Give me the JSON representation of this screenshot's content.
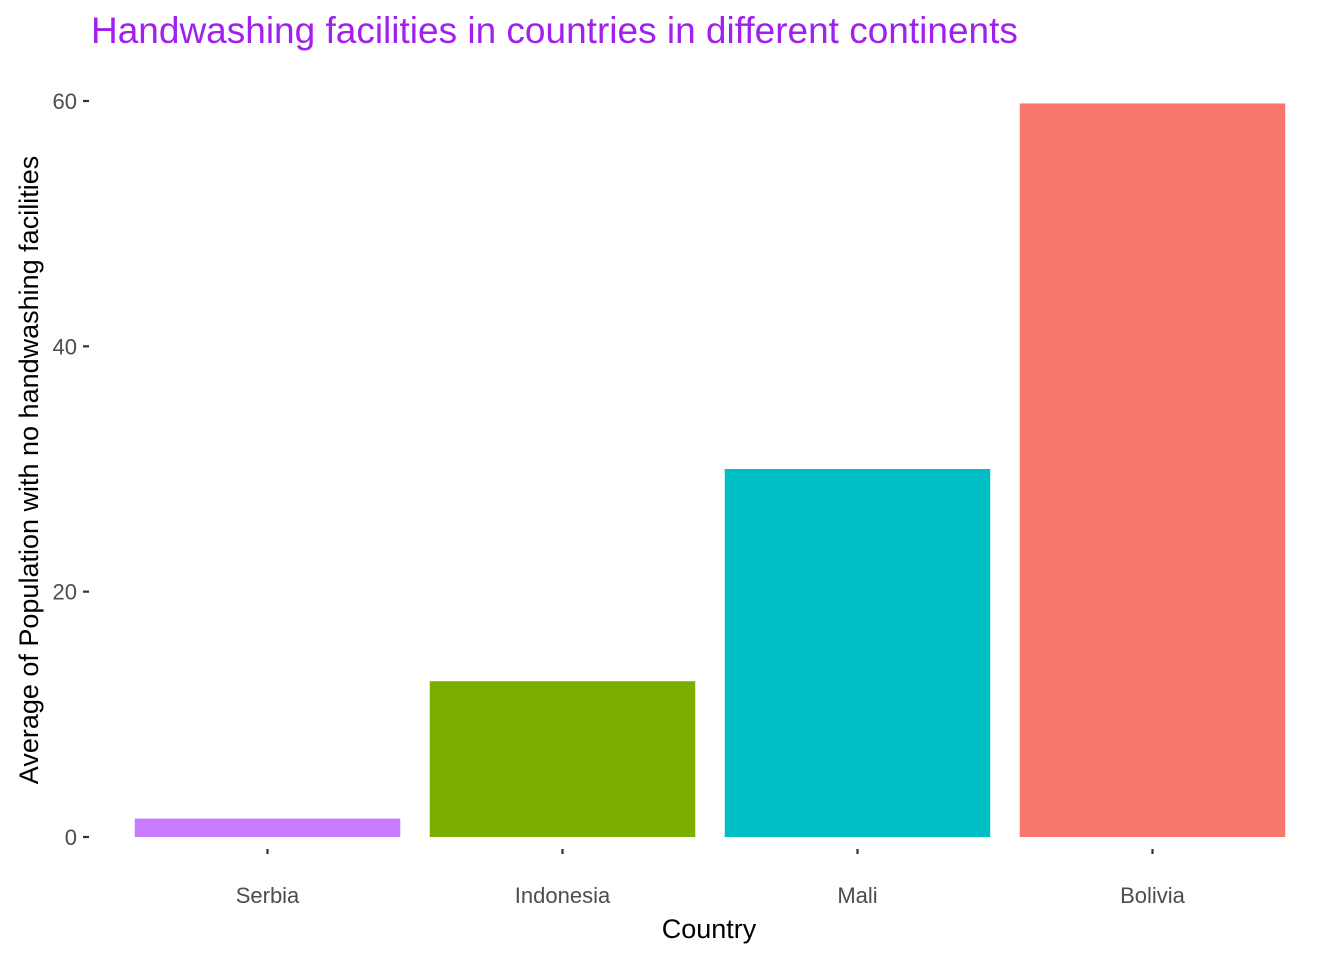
{
  "chart_data": {
    "type": "bar",
    "title": "Handwashing facilities in countries in different continents",
    "xlabel": "Country",
    "ylabel": "Average of Population with no handwashing facilities",
    "categories": [
      "Serbia",
      "Indonesia",
      "Mali",
      "Bolivia"
    ],
    "values": [
      1.5,
      12.7,
      30.0,
      59.8
    ],
    "colors": [
      "#C77CFF",
      "#7CAE00",
      "#00BFC4",
      "#F8766D"
    ],
    "title_color": "#A020F0",
    "ylim": [
      0,
      60
    ],
    "yticks": [
      0,
      20,
      40,
      60
    ],
    "grid": false,
    "legend": "none"
  }
}
